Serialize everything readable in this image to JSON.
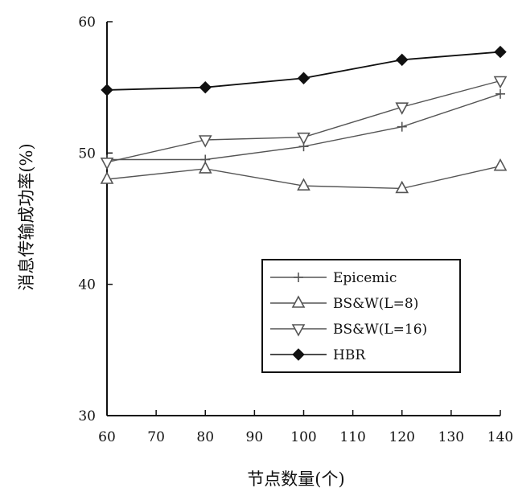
{
  "chart_data": {
    "type": "line",
    "title": "",
    "xlabel": "节点数量(个)",
    "ylabel": "消息传输成功率(%)",
    "xlim": [
      60,
      140
    ],
    "ylim": [
      30,
      60
    ],
    "xticks": [
      60,
      70,
      80,
      90,
      100,
      110,
      120,
      130,
      140
    ],
    "yticks": [
      30,
      40,
      50,
      60
    ],
    "grid": false,
    "legend_position": "lower-right",
    "x": [
      60,
      80,
      100,
      120,
      140
    ],
    "series": [
      {
        "name": "Epicemic",
        "marker": "plus",
        "color": "#555555",
        "values": [
          49.5,
          49.5,
          50.5,
          52.0,
          54.5
        ]
      },
      {
        "name": "BS&W(L=8)",
        "marker": "triangle-up",
        "color": "#555555",
        "values": [
          48.0,
          48.8,
          47.5,
          47.3,
          49.0
        ]
      },
      {
        "name": "BS&W(L=16)",
        "marker": "triangle-down",
        "color": "#555555",
        "values": [
          49.3,
          51.0,
          51.2,
          53.5,
          55.5
        ]
      },
      {
        "name": "HBR",
        "marker": "diamond",
        "color": "#111111",
        "values": [
          54.8,
          55.0,
          55.7,
          57.1,
          57.7
        ]
      }
    ]
  }
}
